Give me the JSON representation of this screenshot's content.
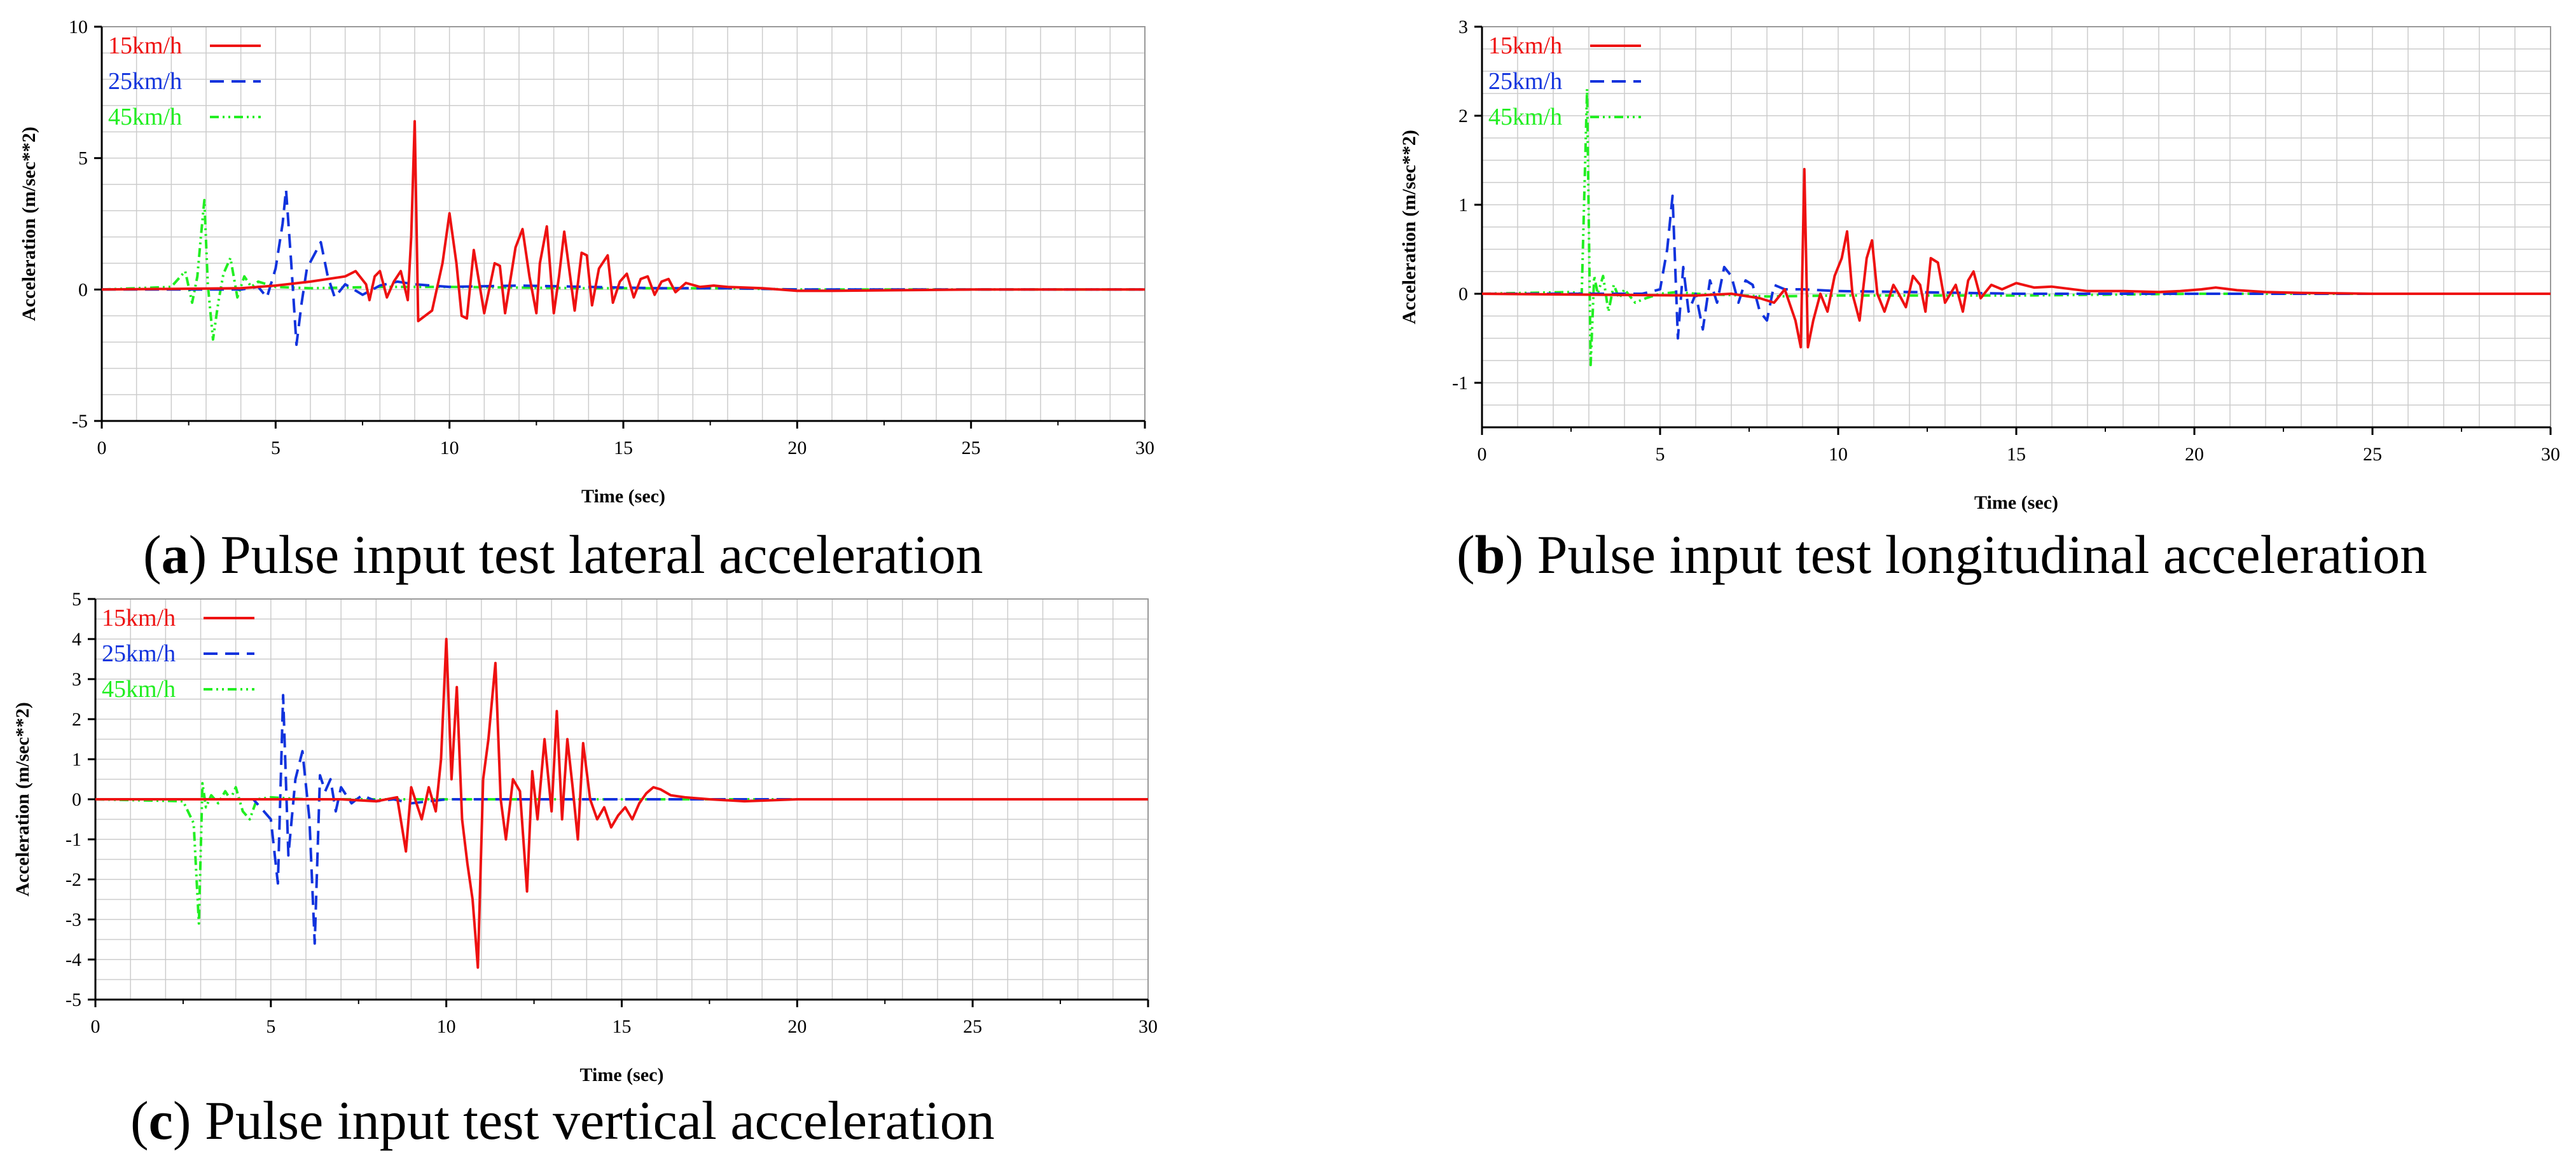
{
  "colors": {
    "15kmh": "#ee1111",
    "25kmh": "#1133dd",
    "45kmh": "#22ee22",
    "grid": "#cccccc",
    "axis": "#000000"
  },
  "captions": [
    {
      "letter": "a",
      "open": "(",
      "close": ")",
      "text": " Pulse input test lateral acceleration"
    },
    {
      "letter": "b",
      "open": "(",
      "close": ")",
      "text": " Pulse input test longitudinal acceleration"
    },
    {
      "letter": "c",
      "open": "(",
      "close": ")",
      "text": " Pulse input test vertical acceleration"
    }
  ],
  "chart_data": [
    {
      "type": "line",
      "title": "Pulse input test lateral acceleration",
      "xlabel": "Time (sec)",
      "ylabel": "Acceleration (m/sec**2)",
      "xlim": [
        0,
        30
      ],
      "ylim": [
        -5,
        10
      ],
      "xticks": [
        0,
        5,
        10,
        15,
        20,
        25,
        30
      ],
      "yticks": [
        -5,
        0,
        5,
        10
      ],
      "legend": "top-left",
      "series": [
        {
          "name": "15km/h",
          "color": "#ee1111",
          "dash": "solid",
          "x": [
            0,
            4.0,
            5.0,
            6.0,
            7.0,
            7.3,
            7.6,
            7.7,
            7.85,
            8.0,
            8.2,
            8.4,
            8.6,
            8.8,
            8.9,
            9.0,
            9.1,
            9.5,
            9.8,
            10.0,
            10.2,
            10.35,
            10.5,
            10.7,
            11.0,
            11.3,
            11.45,
            11.6,
            11.9,
            12.1,
            12.3,
            12.5,
            12.6,
            12.8,
            13.0,
            13.15,
            13.3,
            13.6,
            13.8,
            13.95,
            14.1,
            14.3,
            14.55,
            14.7,
            14.9,
            15.1,
            15.3,
            15.5,
            15.7,
            15.9,
            16.1,
            16.3,
            16.5,
            16.8,
            17.2,
            17.6,
            18.0,
            19.0,
            20.0,
            21.0,
            25.0,
            30.0
          ],
          "y": [
            0,
            0.05,
            0.15,
            0.3,
            0.5,
            0.7,
            0.2,
            -0.4,
            0.5,
            0.7,
            -0.3,
            0.3,
            0.7,
            -0.4,
            2.0,
            6.4,
            -1.2,
            -0.8,
            1.0,
            2.9,
            1.0,
            -1.0,
            -1.1,
            1.5,
            -0.9,
            1.0,
            0.9,
            -0.9,
            1.6,
            2.3,
            0.5,
            -0.9,
            1.0,
            2.4,
            -0.9,
            0.5,
            2.2,
            -0.8,
            1.4,
            1.3,
            -0.6,
            0.8,
            1.3,
            -0.5,
            0.3,
            0.6,
            -0.3,
            0.4,
            0.5,
            -0.2,
            0.3,
            0.4,
            -0.1,
            0.25,
            0.1,
            0.15,
            0.1,
            0.05,
            -0.05,
            -0.05,
            0,
            0
          ]
        },
        {
          "name": "25km/h",
          "color": "#1133dd",
          "dash": "dashed",
          "x": [
            0,
            4.0,
            4.5,
            4.75,
            5.0,
            5.2,
            5.3,
            5.45,
            5.6,
            5.75,
            5.9,
            6.1,
            6.3,
            6.5,
            6.7,
            7.0,
            7.5,
            8.0,
            8.5,
            9.0,
            10.0,
            12.0,
            14.0,
            16.0,
            18.0,
            20.0,
            30.0
          ],
          "y": [
            0,
            0,
            0.1,
            -0.3,
            0.8,
            2.5,
            3.8,
            1.0,
            -2.1,
            -0.5,
            0.8,
            1.3,
            1.8,
            0.5,
            -0.3,
            0.2,
            -0.2,
            0.15,
            0.3,
            0.2,
            0.1,
            0.15,
            0.1,
            0.05,
            0.05,
            0.0,
            0.0
          ]
        },
        {
          "name": "45km/h",
          "color": "#22ee22",
          "dash": "dashdot",
          "x": [
            0,
            2.0,
            2.4,
            2.6,
            2.75,
            2.85,
            2.95,
            3.05,
            3.2,
            3.35,
            3.5,
            3.7,
            3.9,
            4.1,
            4.3,
            4.5,
            5.0,
            6.0,
            8.0,
            10.0,
            14.0,
            18.0,
            20.0,
            30.0
          ],
          "y": [
            0,
            0.1,
            0.7,
            -0.5,
            0.5,
            2.0,
            3.4,
            0.2,
            -1.9,
            -0.5,
            0.6,
            1.2,
            -0.3,
            0.5,
            0.1,
            0.3,
            0.1,
            0.05,
            0.1,
            0.1,
            0.05,
            0.05,
            0.0,
            0.0
          ]
        }
      ]
    },
    {
      "type": "line",
      "title": "Pulse input test longitudinal acceleration",
      "xlabel": "Time (sec)",
      "ylabel": "Acceleration (m/sec**2)",
      "xlim": [
        0,
        30
      ],
      "ylim": [
        -1.5,
        3
      ],
      "xticks": [
        0,
        5,
        10,
        15,
        20,
        25,
        30
      ],
      "yticks": [
        -1,
        0,
        1,
        2,
        3
      ],
      "legend": "top-left",
      "series": [
        {
          "name": "15km/h",
          "color": "#ee1111",
          "dash": "solid",
          "x": [
            0,
            6.0,
            7.0,
            7.8,
            8.2,
            8.5,
            8.8,
            8.95,
            9.05,
            9.15,
            9.3,
            9.5,
            9.7,
            9.9,
            10.1,
            10.25,
            10.4,
            10.6,
            10.8,
            10.95,
            11.1,
            11.3,
            11.55,
            11.7,
            11.9,
            12.1,
            12.3,
            12.45,
            12.6,
            12.8,
            13.0,
            13.3,
            13.5,
            13.65,
            13.8,
            14.0,
            14.3,
            14.6,
            15.0,
            15.5,
            16.0,
            17.0,
            18.0,
            19.0,
            19.6,
            20.2,
            20.6,
            21.2,
            22.0,
            23.0,
            25.0,
            30.0
          ],
          "y": [
            0,
            -0.02,
            0.0,
            -0.05,
            -0.1,
            0.05,
            -0.3,
            -0.6,
            1.4,
            -0.6,
            -0.3,
            0.0,
            -0.2,
            0.2,
            0.4,
            0.7,
            0.0,
            -0.3,
            0.4,
            0.6,
            0.0,
            -0.2,
            0.1,
            0.0,
            -0.15,
            0.2,
            0.1,
            -0.2,
            0.4,
            0.35,
            -0.1,
            0.1,
            -0.2,
            0.15,
            0.25,
            -0.05,
            0.1,
            0.05,
            0.12,
            0.07,
            0.08,
            0.03,
            0.03,
            0.02,
            0.03,
            0.05,
            0.07,
            0.04,
            0.02,
            0.01,
            0,
            0
          ]
        },
        {
          "name": "25km/h",
          "color": "#1133dd",
          "dash": "dashed",
          "x": [
            0,
            4.5,
            5.0,
            5.2,
            5.35,
            5.5,
            5.65,
            5.8,
            6.0,
            6.2,
            6.4,
            6.6,
            6.8,
            7.0,
            7.2,
            7.4,
            7.6,
            7.8,
            8.0,
            8.2,
            8.5,
            9.0,
            10.0,
            12.0,
            15.0,
            20.0,
            30.0
          ],
          "y": [
            0,
            0,
            0.05,
            0.5,
            1.1,
            -0.5,
            0.3,
            -0.2,
            0.0,
            -0.4,
            0.15,
            -0.1,
            0.3,
            0.2,
            -0.1,
            0.15,
            0.1,
            -0.2,
            -0.3,
            0.1,
            0.05,
            0.05,
            0.03,
            0.02,
            0.0,
            0.0,
            0.0
          ]
        },
        {
          "name": "45km/h",
          "color": "#22ee22",
          "dash": "dashdot",
          "x": [
            0,
            2.5,
            2.8,
            2.95,
            3.05,
            3.15,
            3.25,
            3.4,
            3.55,
            3.7,
            3.85,
            4.0,
            4.3,
            4.6,
            5.0,
            5.5,
            6.0,
            8.0,
            10.0,
            15.0,
            20.0,
            25.0,
            30.0
          ],
          "y": [
            0,
            0.02,
            0.0,
            2.3,
            -0.8,
            0.2,
            0.0,
            0.2,
            -0.2,
            0.1,
            -0.05,
            0.05,
            -0.1,
            -0.05,
            0.0,
            0.02,
            0.0,
            -0.03,
            -0.02,
            -0.02,
            0.0,
            0.0,
            0.0
          ]
        }
      ]
    },
    {
      "type": "line",
      "title": "Pulse input test vertical acceleration",
      "xlabel": "Time (sec)",
      "ylabel": "Acceleration (m/sec**2)",
      "xlim": [
        0,
        30
      ],
      "ylim": [
        -5,
        5
      ],
      "xticks": [
        0,
        5,
        10,
        15,
        20,
        25,
        30
      ],
      "yticks": [
        -5,
        -4,
        -3,
        -2,
        -1,
        0,
        1,
        2,
        3,
        4,
        5
      ],
      "legend": "top-left",
      "series": [
        {
          "name": "15km/h",
          "color": "#ee1111",
          "dash": "solid",
          "x": [
            0,
            7.0,
            8.0,
            8.6,
            8.85,
            9.0,
            9.3,
            9.5,
            9.7,
            9.85,
            10.0,
            10.15,
            10.3,
            10.45,
            10.6,
            10.75,
            10.9,
            11.05,
            11.2,
            11.4,
            11.55,
            11.7,
            11.9,
            12.1,
            12.3,
            12.45,
            12.6,
            12.8,
            13.0,
            13.15,
            13.3,
            13.45,
            13.6,
            13.75,
            13.9,
            14.1,
            14.3,
            14.5,
            14.7,
            14.9,
            15.1,
            15.3,
            15.5,
            15.7,
            15.9,
            16.1,
            16.4,
            16.8,
            17.5,
            18.5,
            20.0,
            30.0
          ],
          "y": [
            0,
            0,
            -0.05,
            0.05,
            -1.3,
            0.3,
            -0.5,
            0.3,
            -0.3,
            1.0,
            4.0,
            0.5,
            2.8,
            -0.5,
            -1.6,
            -2.5,
            -4.2,
            0.5,
            1.5,
            3.4,
            0.0,
            -1.0,
            0.5,
            0.2,
            -2.3,
            0.7,
            -0.5,
            1.5,
            -0.3,
            2.2,
            -0.5,
            1.5,
            0.3,
            -1.0,
            1.4,
            0.0,
            -0.5,
            -0.2,
            -0.7,
            -0.4,
            -0.2,
            -0.5,
            -0.1,
            0.15,
            0.3,
            0.25,
            0.1,
            0.05,
            0.0,
            -0.05,
            0.0,
            0.0
          ]
        },
        {
          "name": "25km/h",
          "color": "#1133dd",
          "dash": "dashed",
          "x": [
            0,
            4.5,
            5.0,
            5.2,
            5.35,
            5.5,
            5.7,
            5.9,
            6.1,
            6.25,
            6.4,
            6.55,
            6.7,
            6.85,
            7.0,
            7.3,
            7.6,
            8.0,
            8.5,
            9.0,
            10.0,
            15.0,
            30.0
          ],
          "y": [
            0,
            0,
            -0.5,
            -2.1,
            2.6,
            -1.4,
            0.5,
            1.2,
            -0.5,
            -3.6,
            0.6,
            0.2,
            0.5,
            -0.3,
            0.3,
            -0.1,
            0.1,
            -0.05,
            0.0,
            -0.1,
            0.0,
            0.0,
            0.0
          ]
        },
        {
          "name": "45km/h",
          "color": "#22ee22",
          "dash": "dashdot",
          "x": [
            0,
            2.5,
            2.8,
            2.95,
            3.05,
            3.15,
            3.3,
            3.5,
            3.7,
            3.85,
            4.0,
            4.2,
            4.4,
            4.6,
            5.0,
            6.0,
            10.0,
            20.0,
            30.0
          ],
          "y": [
            0,
            -0.05,
            -0.6,
            -3.1,
            0.4,
            -0.2,
            0.1,
            -0.1,
            0.2,
            0.0,
            0.3,
            -0.3,
            -0.5,
            0.0,
            0.05,
            0.0,
            0.0,
            0.0,
            0.0
          ]
        }
      ]
    }
  ]
}
